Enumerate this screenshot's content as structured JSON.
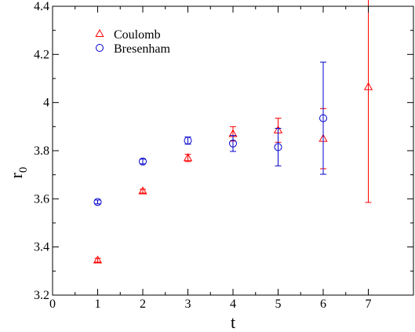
{
  "chart_data": {
    "type": "scatter",
    "title": "",
    "xlabel": "t",
    "ylabel": "r",
    "ylabel_subscript": "0",
    "xlim": [
      0,
      8
    ],
    "ylim": [
      3.2,
      4.4
    ],
    "xticks": [
      0,
      1,
      2,
      3,
      4,
      5,
      6,
      7
    ],
    "xtick_labels": [
      "0",
      "1",
      "2",
      "3",
      "4",
      "5",
      "6",
      "7"
    ],
    "yticks": [
      3.2,
      3.4,
      3.6,
      3.8,
      4.0,
      4.2,
      4.4
    ],
    "ytick_labels": [
      "3.2",
      "3.4",
      "3.6",
      "3.8",
      "4",
      "4.2",
      "4.4"
    ],
    "grid": false,
    "legend_position": "top-left",
    "series": [
      {
        "name": "Coulomb",
        "marker": "triangle",
        "color": "#ff0000",
        "points": [
          {
            "x": 1,
            "y": 3.345,
            "err": 0.008
          },
          {
            "x": 2,
            "y": 3.632,
            "err": 0.008
          },
          {
            "x": 3,
            "y": 3.77,
            "err": 0.015
          },
          {
            "x": 4,
            "y": 3.87,
            "err": 0.03
          },
          {
            "x": 5,
            "y": 3.885,
            "err": 0.05
          },
          {
            "x": 6,
            "y": 3.85,
            "err": 0.125
          },
          {
            "x": 7,
            "y": 4.065,
            "err": 0.48
          }
        ]
      },
      {
        "name": "Bresenham",
        "marker": "circle",
        "color": "#0000cc",
        "points": [
          {
            "x": 1,
            "y": 3.587,
            "err": 0.008
          },
          {
            "x": 2,
            "y": 3.755,
            "err": 0.01
          },
          {
            "x": 3,
            "y": 3.842,
            "err": 0.015
          },
          {
            "x": 4,
            "y": 3.83,
            "err": 0.033
          },
          {
            "x": 5,
            "y": 3.815,
            "err": 0.078
          },
          {
            "x": 6,
            "y": 3.935,
            "err": 0.233
          }
        ]
      }
    ]
  }
}
